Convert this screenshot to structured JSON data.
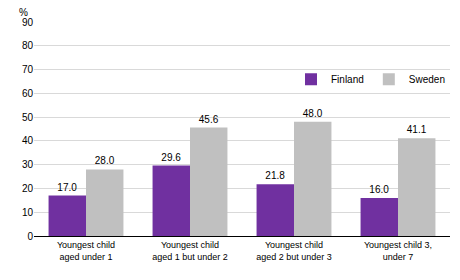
{
  "chart_data": {
    "type": "bar",
    "ylabel": "%",
    "categories": [
      "Youngest child aged under 1",
      "Youngest child aged 1 but under 2",
      "Youngest child aged 2 but under 3",
      "Youngest child 3, under 7"
    ],
    "series": [
      {
        "name": "Finland",
        "color": "#7030a0",
        "values": [
          17.0,
          29.6,
          21.8,
          16.0
        ],
        "value_labels": [
          "17.0",
          "29.6",
          "21.8",
          "16.0"
        ]
      },
      {
        "name": "Sweden",
        "color": "#c0c0c0",
        "values": [
          28.0,
          45.6,
          48.0,
          41.1
        ],
        "value_labels": [
          "28.0",
          "45.6",
          "48.0",
          "41.1"
        ]
      }
    ],
    "ylim": [
      0,
      90
    ],
    "yticks": [
      0,
      10,
      20,
      30,
      40,
      50,
      60,
      70,
      80,
      90
    ],
    "grid": true,
    "legend": "upper right",
    "data_labels": true
  }
}
